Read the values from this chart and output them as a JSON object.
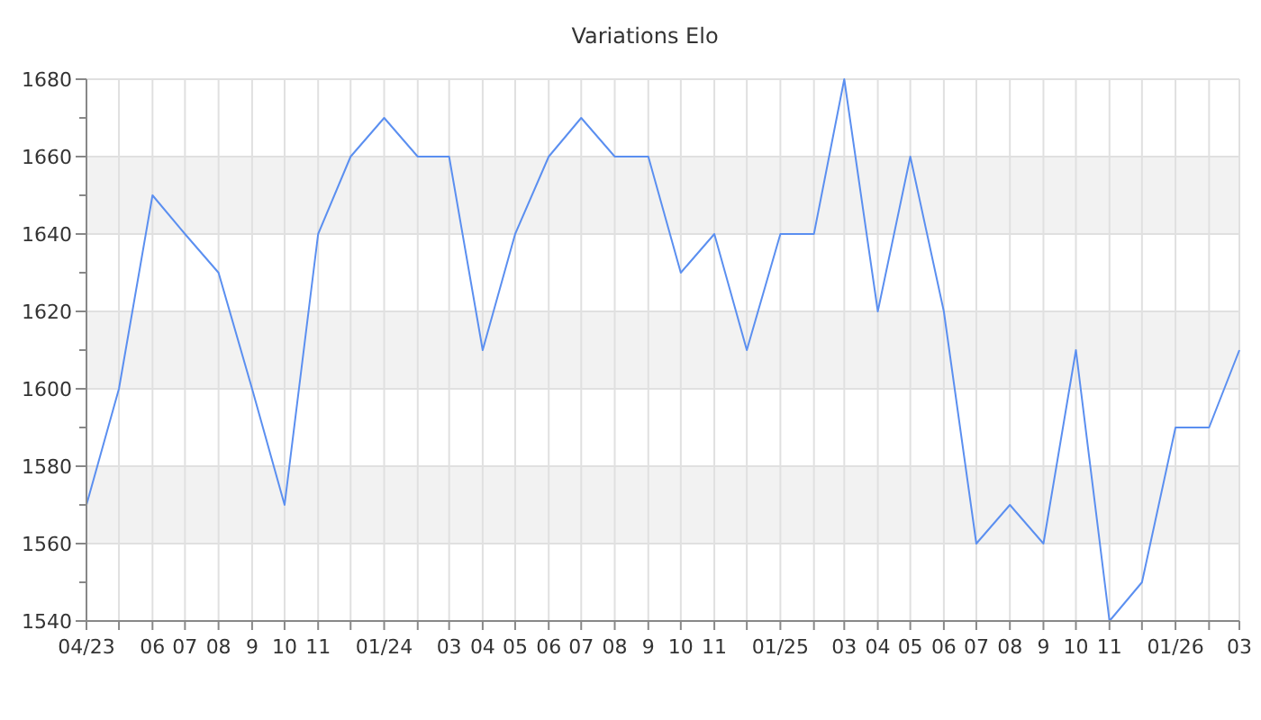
{
  "chart_data": {
    "type": "line",
    "title": "Variations Elo",
    "x": [
      "2023-04",
      "2023-05",
      "2023-06",
      "2023-07",
      "2023-08",
      "2023-09",
      "2023-10",
      "2023-11",
      "2023-12",
      "2024-01",
      "2024-02",
      "2024-03",
      "2024-04",
      "2024-05",
      "2024-06",
      "2024-07",
      "2024-08",
      "2024-09",
      "2024-10",
      "2024-11",
      "2024-12",
      "2025-01",
      "2025-02",
      "2025-03",
      "2025-04",
      "2025-05",
      "2025-06",
      "2025-07",
      "2025-08",
      "2025-09",
      "2025-10",
      "2025-11",
      "2025-12",
      "2026-01",
      "2026-02",
      "2026-03"
    ],
    "series": [
      {
        "color": "#5b8ff0",
        "values": [
          1570,
          1600,
          1650,
          1640,
          1630,
          1600,
          1570,
          1640,
          1660,
          1670,
          1660,
          1660,
          1610,
          1640,
          1660,
          1670,
          1660,
          1660,
          1630,
          1640,
          1610,
          1640,
          1640,
          1680,
          1620,
          1660,
          1620,
          1560,
          1570,
          1560,
          1610,
          1540,
          1550,
          1590,
          1590,
          1610
        ]
      }
    ],
    "xlim": [
      "2023-04",
      "2026-03"
    ],
    "xticks": [
      {
        "value": "2023-04",
        "label": "04/23"
      },
      {
        "value": "2023-05",
        "label": null
      },
      {
        "value": "2023-06",
        "label": "06"
      },
      {
        "value": "2023-07",
        "label": "07"
      },
      {
        "value": "2023-08",
        "label": "08"
      },
      {
        "value": "2023-09",
        "label": "9"
      },
      {
        "value": "2023-10",
        "label": "10"
      },
      {
        "value": "2023-11",
        "label": "11"
      },
      {
        "value": "2023-12",
        "label": null
      },
      {
        "value": "2024-01",
        "label": "01/24"
      },
      {
        "value": "2024-02",
        "label": null
      },
      {
        "value": "2024-03",
        "label": "03"
      },
      {
        "value": "2024-04",
        "label": "04"
      },
      {
        "value": "2024-05",
        "label": "05"
      },
      {
        "value": "2024-06",
        "label": "06"
      },
      {
        "value": "2024-07",
        "label": "07"
      },
      {
        "value": "2024-08",
        "label": "08"
      },
      {
        "value": "2024-09",
        "label": "9"
      },
      {
        "value": "2024-10",
        "label": "10"
      },
      {
        "value": "2024-11",
        "label": "11"
      },
      {
        "value": "2024-12",
        "label": null
      },
      {
        "value": "2025-01",
        "label": "01/25"
      },
      {
        "value": "2025-02",
        "label": null
      },
      {
        "value": "2025-03",
        "label": "03"
      },
      {
        "value": "2025-04",
        "label": "04"
      },
      {
        "value": "2025-05",
        "label": "05"
      },
      {
        "value": "2025-06",
        "label": "06"
      },
      {
        "value": "2025-07",
        "label": "07"
      },
      {
        "value": "2025-08",
        "label": "08"
      },
      {
        "value": "2025-09",
        "label": "9"
      },
      {
        "value": "2025-10",
        "label": "10"
      },
      {
        "value": "2025-11",
        "label": "11"
      },
      {
        "value": "2025-12",
        "label": null
      },
      {
        "value": "2026-01",
        "label": "01/26"
      },
      {
        "value": "2026-02",
        "label": null
      },
      {
        "value": "2026-03",
        "label": "03"
      }
    ],
    "ylim": [
      1540,
      1680
    ],
    "yticks": [
      1540,
      {
        "value": 1550,
        "label": null
      },
      1560,
      {
        "value": 1570,
        "label": null
      },
      1580,
      {
        "value": 1590,
        "label": null
      },
      1600,
      {
        "value": 1610,
        "label": null
      },
      1620,
      {
        "value": 1630,
        "label": null
      },
      1640,
      {
        "value": 1650,
        "label": null
      },
      1660,
      {
        "value": 1670,
        "label": null
      },
      1680
    ],
    "bands": [
      {
        "axis": "y",
        "from": 1560,
        "to": 1580,
        "color": "#f2f2f2"
      },
      {
        "axis": "y",
        "from": 1600,
        "to": 1620,
        "color": "#f2f2f2"
      },
      {
        "axis": "y",
        "from": 1640,
        "to": 1660,
        "color": "#f2f2f2"
      }
    ],
    "grid": true,
    "line_style": "solid"
  }
}
